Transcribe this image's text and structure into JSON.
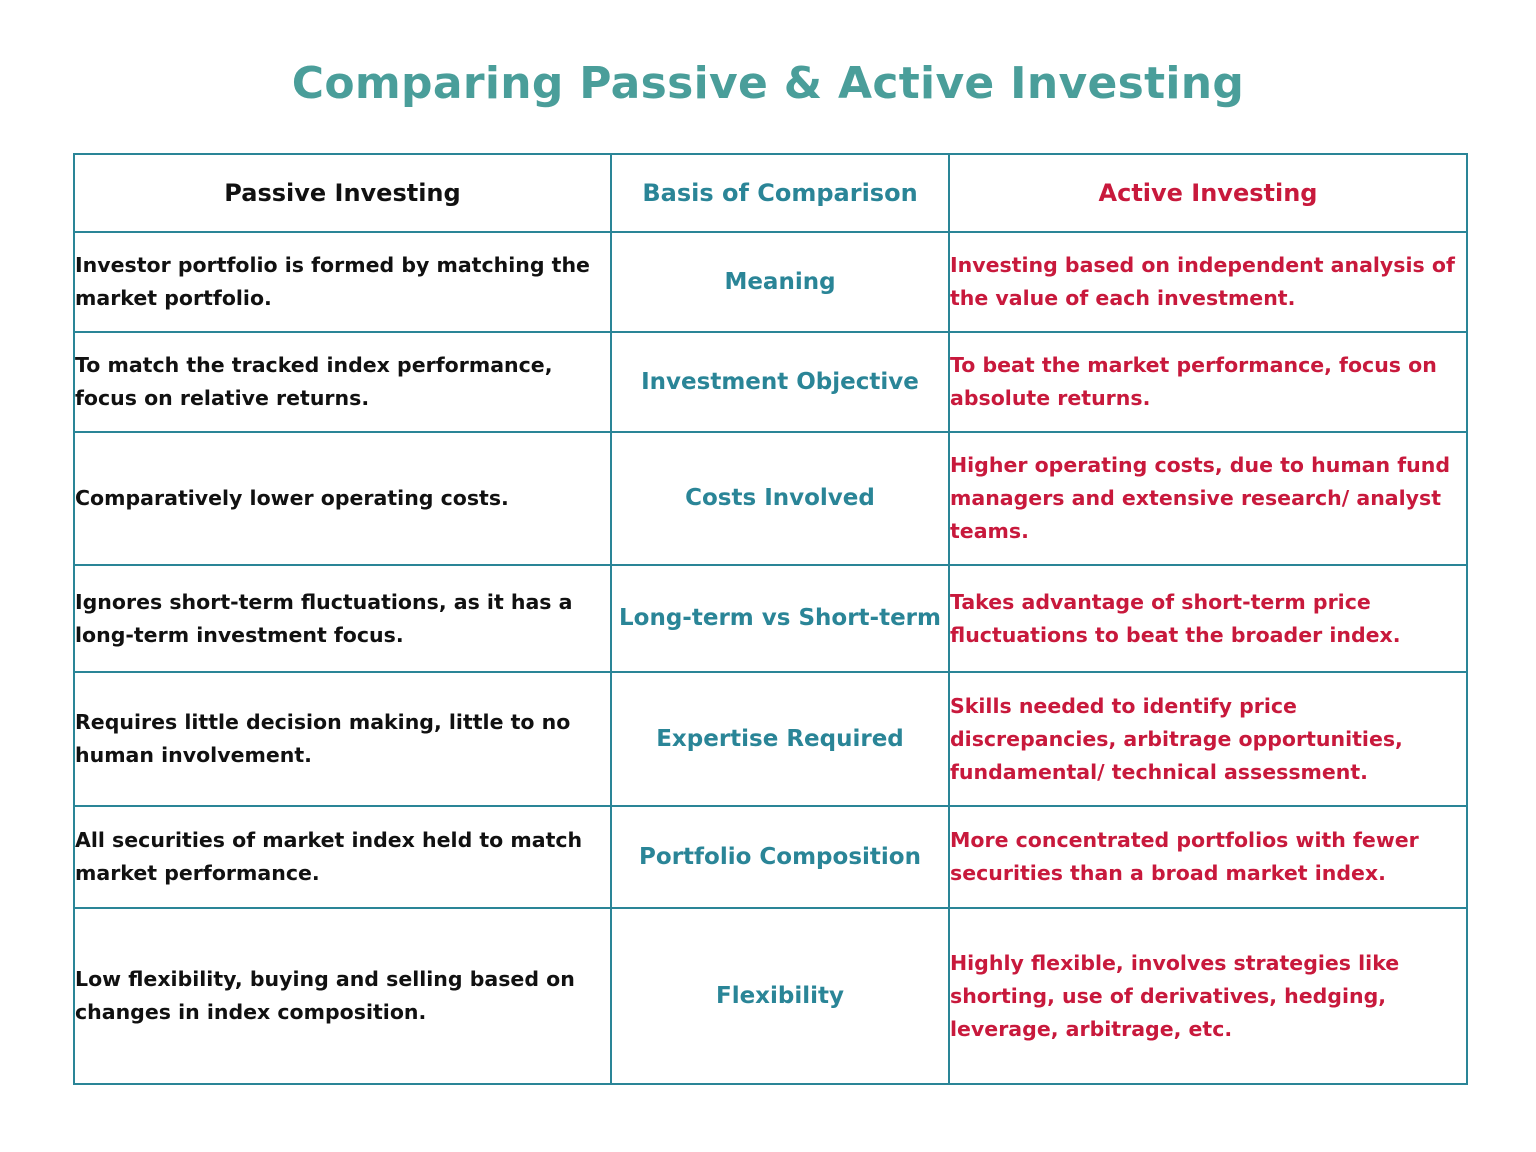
{
  "title": "Comparing Passive & Active Investing",
  "headers": {
    "passive": "Passive Investing",
    "basis": "Basis of Comparison",
    "active": "Active Investing"
  },
  "rows": [
    {
      "basis": "Meaning",
      "passive": "Investor portfolio is formed by matching the market portfolio.",
      "active": "Investing based on independent analysis of the value of each investment."
    },
    {
      "basis": "Investment Objective",
      "passive": "To match the tracked index performance, focus on relative returns.",
      "active": "To beat the market performance, focus on absolute returns."
    },
    {
      "basis": "Costs Involved",
      "passive": "Comparatively lower operating costs.",
      "active": "Higher operating costs, due to human fund managers and extensive research/ analyst teams."
    },
    {
      "basis": "Long-term vs Short-term",
      "passive": "Ignores short-term fluctuations, as it has a long-term investment focus.",
      "active": "Takes advantage of short-term price fluctuations to beat the broader index."
    },
    {
      "basis": "Expertise Required",
      "passive": "Requires little decision making, little to no human involvement.",
      "active": "Skills needed to identify price discrepancies, arbitrage opportunities, fundamental/ technical assessment."
    },
    {
      "basis": "Portfolio Composition",
      "passive": "All securities of market index held to match market performance.",
      "active": "More concentrated portfolios with fewer securities than a broad market index."
    },
    {
      "basis": "Flexibility",
      "passive": "Low flexibility, buying and selling based on changes in index composition.",
      "active": "Highly flexible, involves strategies like shorting, use of derivatives, hedging, leverage, arbitrage, etc."
    }
  ],
  "colors": {
    "title": "#4a9e9a",
    "border": "#2a8597",
    "basis_text": "#2a8597",
    "passive_text": "#111111",
    "active_text": "#c8193c"
  }
}
